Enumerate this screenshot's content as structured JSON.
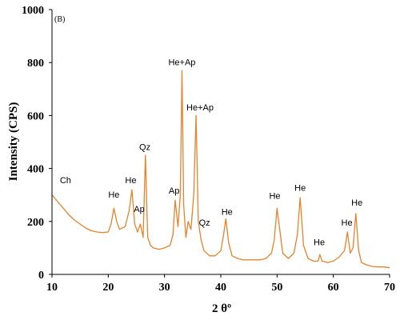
{
  "chart_data": {
    "type": "line",
    "panel_label": "(B)",
    "xlabel": "2 θº",
    "ylabel": "Intensity (CPS)",
    "xlim": [
      10,
      70
    ],
    "ylim": [
      0,
      1000
    ],
    "x_ticks": [
      "10",
      "20",
      "30",
      "40",
      "50",
      "60",
      "70"
    ],
    "y_ticks": [
      "0",
      "200",
      "400",
      "600",
      "800",
      "1000"
    ],
    "grid": false,
    "line_color": "#E8822C",
    "series": [
      {
        "x": [
          10,
          11,
          12,
          13,
          14,
          15,
          16,
          17,
          18,
          19,
          20,
          20.5,
          21,
          21.5,
          22,
          23,
          23.7,
          24.2,
          24.7,
          25.2,
          25.7,
          26.2,
          26.6,
          27,
          27.5,
          28,
          29,
          30,
          31,
          31.5,
          31.9,
          32.4,
          32.8,
          33.1,
          33.4,
          33.8,
          34.2,
          34.7,
          35.2,
          35.6,
          36,
          36.5,
          37,
          38,
          39,
          40,
          40.5,
          40.9,
          41.4,
          42,
          43,
          44,
          45,
          46,
          47,
          48,
          49,
          49.5,
          50,
          51,
          52,
          53,
          53.6,
          54.1,
          54.7,
          55.5,
          56.5,
          57.3,
          57.6,
          58,
          59,
          60,
          61,
          62,
          62.5,
          63,
          63.5,
          64,
          64.5,
          65,
          66,
          67,
          68,
          69,
          70
        ],
        "y": [
          300,
          275,
          250,
          225,
          205,
          190,
          175,
          165,
          160,
          158,
          160,
          190,
          250,
          200,
          170,
          180,
          240,
          320,
          190,
          160,
          190,
          140,
          450,
          140,
          110,
          100,
          95,
          100,
          110,
          150,
          280,
          180,
          300,
          770,
          260,
          140,
          200,
          170,
          300,
          600,
          200,
          130,
          90,
          70,
          70,
          90,
          150,
          210,
          120,
          70,
          60,
          55,
          55,
          55,
          55,
          60,
          80,
          130,
          250,
          80,
          60,
          80,
          150,
          290,
          110,
          60,
          50,
          50,
          75,
          50,
          45,
          50,
          65,
          90,
          160,
          80,
          100,
          230,
          90,
          45,
          35,
          30,
          28,
          28,
          25
        ]
      }
    ],
    "peak_labels": [
      {
        "text": "Ch",
        "x": 12.4,
        "y": 345
      },
      {
        "text": "He",
        "x": 21.0,
        "y": 290
      },
      {
        "text": "He",
        "x": 24.0,
        "y": 345
      },
      {
        "text": "Ap",
        "x": 25.5,
        "y": 235
      },
      {
        "text": "Qz",
        "x": 26.5,
        "y": 470
      },
      {
        "text": "Ap",
        "x": 31.7,
        "y": 305
      },
      {
        "text": "He+Ap",
        "x": 33.1,
        "y": 790
      },
      {
        "text": "He+Ap",
        "x": 36.3,
        "y": 620
      },
      {
        "text": "Qz",
        "x": 37.1,
        "y": 185
      },
      {
        "text": "He",
        "x": 41.1,
        "y": 225
      },
      {
        "text": "He",
        "x": 49.6,
        "y": 285
      },
      {
        "text": "He",
        "x": 54.1,
        "y": 315
      },
      {
        "text": "He",
        "x": 57.5,
        "y": 110
      },
      {
        "text": "He",
        "x": 62.4,
        "y": 185
      },
      {
        "text": "He",
        "x": 64.2,
        "y": 260
      }
    ]
  }
}
